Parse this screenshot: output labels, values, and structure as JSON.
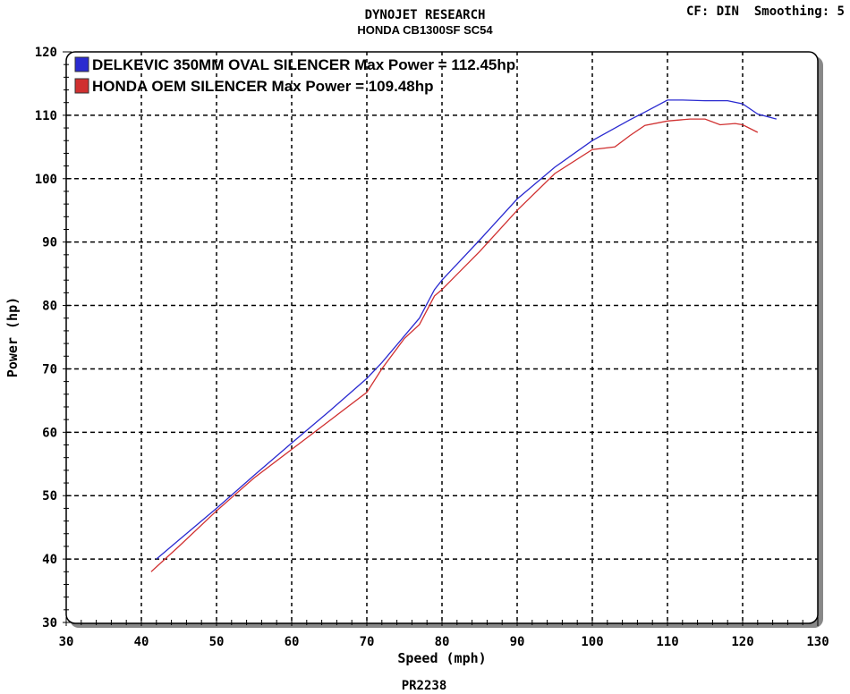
{
  "header": {
    "title": "DYNOJET RESEARCH",
    "subtitle": "HONDA CB1300SF SC54",
    "settings": "CF: DIN  Smoothing: 5"
  },
  "footer": {
    "run_id": "PR2238"
  },
  "chart_data": {
    "type": "line",
    "title": "DYNOJET RESEARCH",
    "subtitle": "HONDA CB1300SF SC54",
    "xlabel": "Speed (mph)",
    "ylabel": "Power (hp)",
    "xlim": [
      30,
      130
    ],
    "ylim": [
      30,
      120
    ],
    "xticks": [
      30,
      40,
      50,
      60,
      70,
      80,
      90,
      100,
      110,
      120,
      130
    ],
    "yticks": [
      30,
      40,
      50,
      60,
      70,
      80,
      90,
      100,
      110,
      120
    ],
    "grid": true,
    "legend_position": "top-left",
    "series": [
      {
        "name": "DELKEVIC 350MM OVAL SILENCER Max Power = 112.45hp",
        "color": "#2a2ad0",
        "x": [
          42,
          45,
          50,
          55,
          60,
          65,
          70,
          72,
          75,
          77,
          79,
          80,
          85,
          90,
          95,
          100,
          105,
          107,
          110,
          112,
          115,
          118,
          120,
          122,
          124.5
        ],
        "y": [
          40,
          43,
          48,
          53.2,
          58.3,
          63.3,
          68.5,
          71,
          75.2,
          78,
          82.5,
          84,
          90.3,
          96.8,
          101.8,
          106,
          109.3,
          110.5,
          112.4,
          112.4,
          112.3,
          112.3,
          111.8,
          110.2,
          109.4
        ]
      },
      {
        "name": "HONDA OEM SILENCER Max Power = 109.48hp",
        "color": "#d03030",
        "x": [
          41.3,
          45,
          50,
          55,
          60,
          65,
          70,
          72,
          75,
          77,
          79,
          80,
          85,
          90,
          95,
          100,
          103,
          105,
          107,
          110,
          113,
          115,
          117,
          119,
          120,
          122
        ],
        "y": [
          38,
          42,
          47.6,
          52.8,
          57.3,
          61.8,
          66.3,
          70,
          74.8,
          77,
          81.5,
          82.5,
          88.5,
          95,
          100.8,
          104.6,
          105,
          106.8,
          108.4,
          109.1,
          109.4,
          109.4,
          108.5,
          108.7,
          108.5,
          107.3
        ]
      }
    ]
  }
}
